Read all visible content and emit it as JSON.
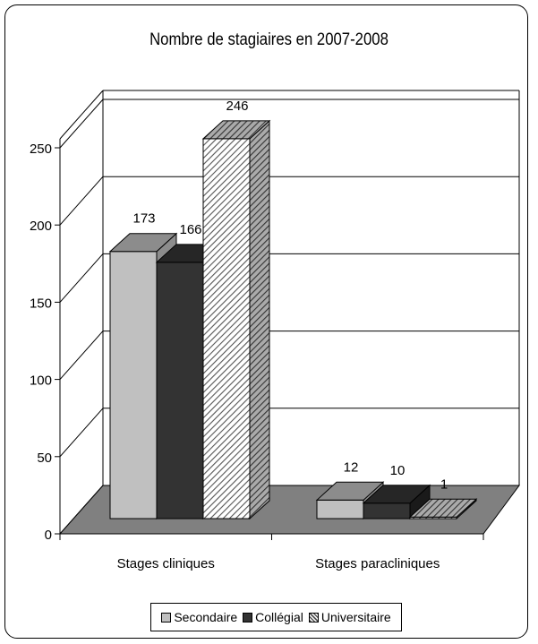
{
  "chart_data": {
    "type": "bar",
    "title": "Nombre de stagiaires en 2007-2008",
    "categories": [
      "Stages cliniques",
      "Stages paracliniques"
    ],
    "series": [
      {
        "name": "Secondaire",
        "values": [
          173,
          12
        ],
        "color": "#c0c0c0",
        "top_color": "#8c8c8c"
      },
      {
        "name": "Collégial",
        "values": [
          166,
          10
        ],
        "color": "#333333",
        "top_color": "#222222"
      },
      {
        "name": "Universitaire",
        "values": [
          246,
          1
        ],
        "color": "#ffffff",
        "top_color": "#888888",
        "pattern": "diagonal-hatch"
      }
    ],
    "ylim": [
      0,
      250
    ],
    "yticks": [
      "0",
      "50",
      "100",
      "150",
      "200",
      "250"
    ],
    "grid": true,
    "legend_position": "bottom",
    "style": "3d"
  }
}
